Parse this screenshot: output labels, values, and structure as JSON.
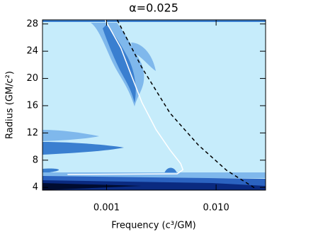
{
  "chart_data": {
    "type": "line",
    "title": "α=0.025",
    "x_label": "Frequency (c³/GM)",
    "y_label": "Radius (GM/c²)",
    "xscale": "log",
    "xlim": [
      0.00026,
      0.0283
    ],
    "ylim": [
      3.6,
      28.6
    ],
    "xticks": [
      0.001,
      {
        "value": 0.01,
        "label": "0.010"
      }
    ],
    "yticks": [
      4,
      8,
      12,
      16,
      20,
      24,
      28
    ],
    "background": "#c6ecfb",
    "series": [
      {
        "color": "#ffffff",
        "style": "solid",
        "x": [
          0.00097,
          0.00135,
          0.00168,
          0.0021,
          0.00283,
          0.0038,
          0.00475,
          0.00498,
          0.00442,
          0.00044
        ],
        "values": [
          28.6,
          24.5,
          20.5,
          16.5,
          12.5,
          9.5,
          7.5,
          6.6,
          6.0,
          5.9
        ]
      },
      {
        "color": "#000000",
        "style": "dashed",
        "x": [
          0.00125,
          0.0021,
          0.0038,
          0.0069,
          0.0125,
          0.0226
        ],
        "values": [
          28.6,
          21.6,
          14.9,
          10.2,
          6.5,
          3.9
        ]
      }
    ]
  }
}
